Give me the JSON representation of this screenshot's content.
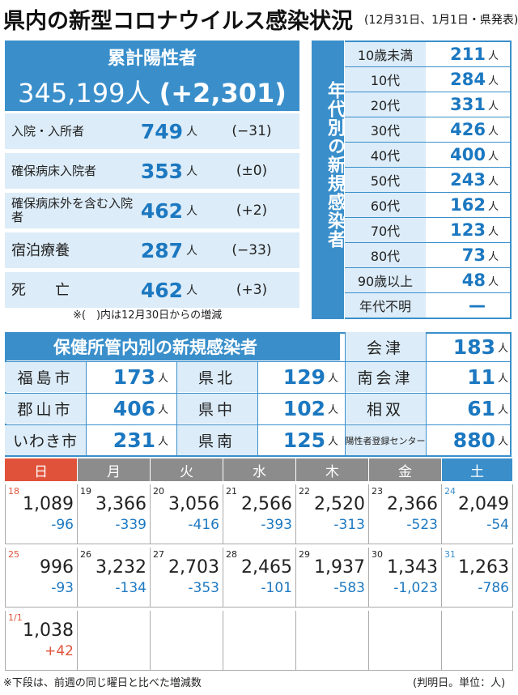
{
  "header": {
    "title": "県内の新型コロナウイルス感染状況",
    "subtitle": "(12月31日、1月1日・県発表)"
  },
  "cumulative": {
    "label": "累計陽性者",
    "value": "345,199人",
    "delta": "(+2,301)"
  },
  "unit": "人",
  "stats": [
    {
      "label": "入院・入所者",
      "value": "749",
      "change": "(−31)"
    },
    {
      "label": "確保病床入院者",
      "value": "353",
      "change": "(±0)"
    },
    {
      "label": "確保病床外を含む入院者",
      "value": "462",
      "change": "(+2)"
    },
    {
      "label": "宿泊療養",
      "value": "287",
      "change": "(−33)"
    },
    {
      "label": "死　　亡",
      "value": "462",
      "change": "(+3)"
    }
  ],
  "stats_note": "※(　)内は12月30日からの増減",
  "age": {
    "title": "年代別の新規感染者",
    "rows": [
      {
        "label": "10歳未満",
        "value": "211"
      },
      {
        "label": "10代",
        "value": "284"
      },
      {
        "label": "20代",
        "value": "331"
      },
      {
        "label": "30代",
        "value": "426"
      },
      {
        "label": "40代",
        "value": "400"
      },
      {
        "label": "50代",
        "value": "243"
      },
      {
        "label": "60代",
        "value": "162"
      },
      {
        "label": "70代",
        "value": "123"
      },
      {
        "label": "80代",
        "value": "73"
      },
      {
        "label": "90歳以上",
        "value": "48"
      },
      {
        "label": "年代不明",
        "value": "—"
      }
    ]
  },
  "regions": {
    "title": "保健所管内別の新規感染者",
    "items": [
      {
        "name": "会津",
        "value": "183"
      },
      {
        "name": "福島市",
        "value": "173"
      },
      {
        "name": "県北",
        "value": "129"
      },
      {
        "name": "南会津",
        "value": "11"
      },
      {
        "name": "郡山市",
        "value": "406"
      },
      {
        "name": "県中",
        "value": "102"
      },
      {
        "name": "相双",
        "value": "61"
      },
      {
        "name": "いわき市",
        "value": "231"
      },
      {
        "name": "県南",
        "value": "125"
      },
      {
        "name": "陽性者登録センター",
        "value": "880"
      }
    ]
  },
  "calendar": {
    "weekdays": [
      "日",
      "月",
      "火",
      "水",
      "木",
      "金",
      "土"
    ],
    "weekday_colors": [
      "#e0533a",
      "#8c8c8c",
      "#8c8c8c",
      "#8c8c8c",
      "#8c8c8c",
      "#8c8c8c",
      "#3a8fcb"
    ],
    "weeks": [
      [
        {
          "day": "18",
          "count": "1,089",
          "change": "-96"
        },
        {
          "day": "19",
          "count": "3,366",
          "change": "-339"
        },
        {
          "day": "20",
          "count": "3,056",
          "change": "-416"
        },
        {
          "day": "21",
          "count": "2,566",
          "change": "-393"
        },
        {
          "day": "22",
          "count": "2,520",
          "change": "-313"
        },
        {
          "day": "23",
          "count": "2,366",
          "change": "-523"
        },
        {
          "day": "24",
          "count": "2,049",
          "change": "-54"
        }
      ],
      [
        {
          "day": "25",
          "count": "996",
          "change": "-93"
        },
        {
          "day": "26",
          "count": "3,232",
          "change": "-134"
        },
        {
          "day": "27",
          "count": "2,703",
          "change": "-353"
        },
        {
          "day": "28",
          "count": "2,465",
          "change": "-101"
        },
        {
          "day": "29",
          "count": "1,937",
          "change": "-583"
        },
        {
          "day": "30",
          "count": "1,343",
          "change": "-1,023"
        },
        {
          "day": "31",
          "count": "1,263",
          "change": "-786"
        }
      ],
      [
        {
          "day": "1/1",
          "count": "1,038",
          "change": "+42"
        },
        {
          "day": "",
          "count": "",
          "change": ""
        },
        {
          "day": "",
          "count": "",
          "change": ""
        },
        {
          "day": "",
          "count": "",
          "change": ""
        },
        {
          "day": "",
          "count": "",
          "change": ""
        },
        {
          "day": "",
          "count": "",
          "change": ""
        },
        {
          "day": "",
          "count": "",
          "change": ""
        }
      ]
    ]
  },
  "footer": {
    "note": "※下段は、前週の同じ曜日と比べた増減数",
    "source": "(判明日。単位：人)"
  }
}
